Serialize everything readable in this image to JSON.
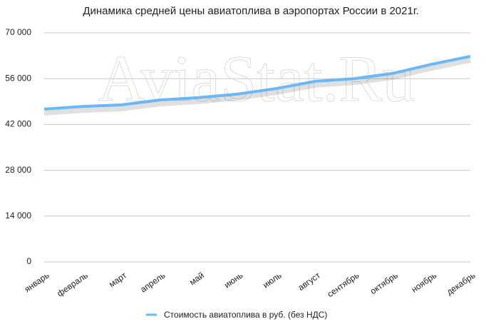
{
  "chart_data": {
    "type": "line",
    "title": "Динамика средней цены авиатоплива в аэропортах России в 2021г.",
    "watermark": "AviaStat.Ru",
    "categories": [
      "январь",
      "февраль",
      "март",
      "апрель",
      "май",
      "июнь",
      "июль",
      "август",
      "сентябрь",
      "октябрь",
      "ноябрь",
      "декабрь"
    ],
    "series": [
      {
        "name": "Стоимость авиатоплива в руб. (без НДС)",
        "color": "#6ab8f7",
        "values": [
          46700,
          47500,
          48000,
          49500,
          50200,
          51300,
          53000,
          55200,
          56000,
          57600,
          60400,
          62800
        ]
      }
    ],
    "ylim": [
      0,
      70000
    ],
    "yticks": [
      0,
      {
        "value": 14000,
        "label": "14 000"
      },
      {
        "value": 28000,
        "label": "28 000"
      },
      {
        "value": 42000,
        "label": "42 000"
      },
      {
        "value": 56000,
        "label": "56 000"
      },
      {
        "value": 70000,
        "label": "70 000"
      }
    ],
    "grid": true,
    "legend": "bottom"
  }
}
